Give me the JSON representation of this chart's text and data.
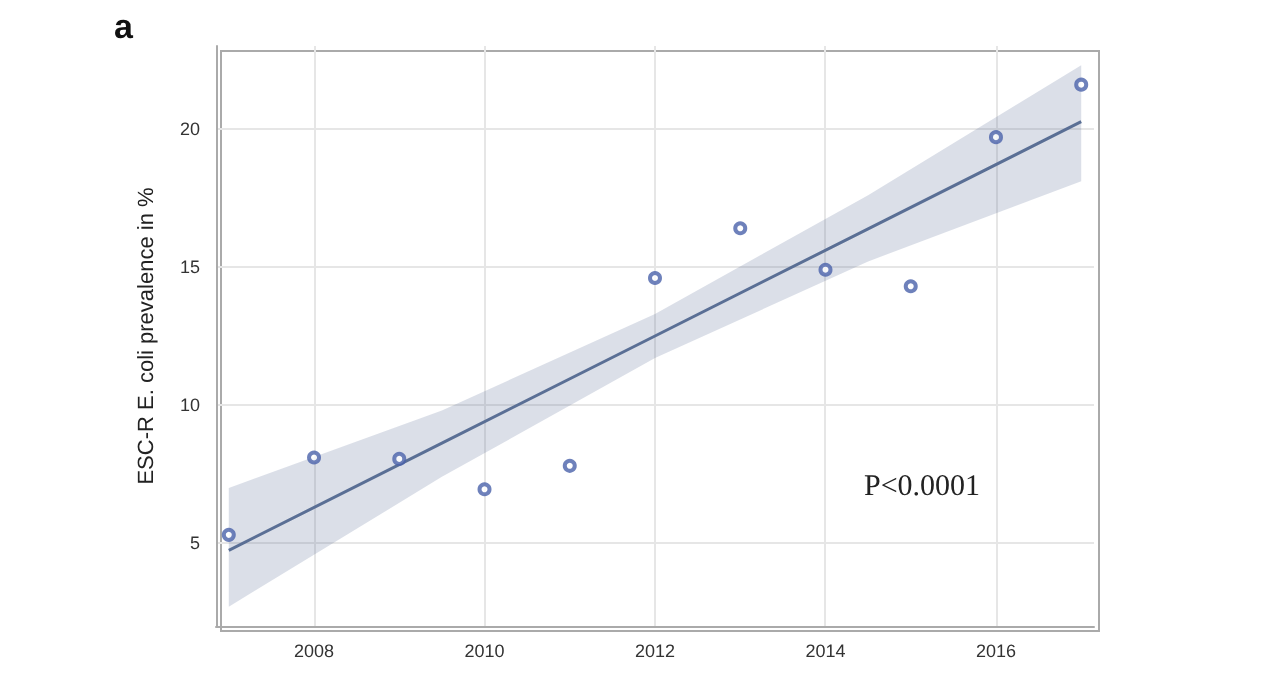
{
  "chart_data": {
    "type": "scatter",
    "title": "a",
    "ylabel": "ESC-R E. coli prevalence in %",
    "annotations": [
      "P<0.0001"
    ],
    "xlim": [
      2006.85,
      2017.15
    ],
    "xticks": [
      2008,
      2010,
      2012,
      2014,
      2016
    ],
    "ylim": [
      2.0,
      23.0
    ],
    "yticks": [
      5,
      10,
      15,
      20
    ],
    "grid": true,
    "marker": "circle",
    "series": [
      {
        "color": "#4a62aa",
        "x": [
          2007,
          2008,
          2009,
          2010,
          2011,
          2012,
          2013,
          2014,
          2015,
          2016,
          2017
        ],
        "values": [
          5.3,
          8.1,
          8.05,
          6.95,
          7.8,
          14.6,
          16.4,
          14.9,
          14.3,
          19.7,
          21.6
        ]
      },
      {
        "type": "line",
        "color": "#5a6f95",
        "marker": "none",
        "line_style": "solid",
        "x": [
          2007,
          2009.5,
          2012,
          2014.5,
          2017
        ],
        "values": [
          4.74,
          8.62,
          12.5,
          16.38,
          20.26
        ],
        "lower": [
          2.7,
          7.4,
          11.7,
          15.2,
          18.1
        ],
        "upper": [
          7.0,
          9.8,
          13.3,
          17.6,
          22.3
        ]
      }
    ]
  }
}
